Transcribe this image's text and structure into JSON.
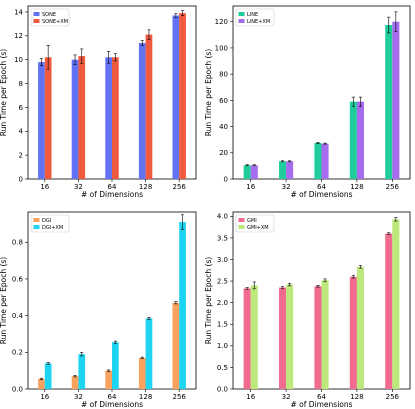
{
  "chart_data": [
    {
      "type": "bar",
      "categories": [
        "16",
        "32",
        "64",
        "128",
        "256"
      ],
      "xlabel": "# of Dimensions",
      "ylabel": "Run Time per Epoch (s)",
      "ylim": [
        0,
        14.5
      ],
      "yticks": [
        0,
        2,
        4,
        6,
        8,
        10,
        12,
        14
      ],
      "legend": "top-left",
      "series": [
        {
          "name": "SONE",
          "color": "#6272f5",
          "values": [
            9.8,
            10.0,
            10.2,
            11.4,
            13.7
          ],
          "errors": [
            0.3,
            0.4,
            0.5,
            0.2,
            0.15
          ]
        },
        {
          "name": "SONE+XM",
          "color": "#ef5a3f",
          "values": [
            10.2,
            10.3,
            10.2,
            12.1,
            13.9
          ],
          "errors": [
            1.0,
            0.6,
            0.3,
            0.4,
            0.2
          ]
        }
      ]
    },
    {
      "type": "bar",
      "categories": [
        "16",
        "32",
        "64",
        "128",
        "256"
      ],
      "xlabel": "# of Dimensions",
      "ylabel": "Run Time per Epoch (s)",
      "ylim": [
        0,
        132
      ],
      "yticks": [
        0,
        20,
        40,
        60,
        80,
        100,
        120
      ],
      "legend": "top-left",
      "series": [
        {
          "name": "LINE",
          "color": "#1fcc9b",
          "values": [
            10.5,
            13.5,
            27.5,
            59.0,
            117.5
          ],
          "errors": [
            0.4,
            0.4,
            0.5,
            3.5,
            6.0
          ]
        },
        {
          "name": "LINE+XM",
          "color": "#a66cf0",
          "values": [
            10.5,
            13.5,
            27.0,
            59.0,
            120.0
          ],
          "errors": [
            0.4,
            0.4,
            0.4,
            3.5,
            7.5
          ]
        }
      ]
    },
    {
      "type": "bar",
      "categories": [
        "16",
        "32",
        "64",
        "128",
        "256"
      ],
      "xlabel": "# of Dimensions",
      "ylabel": "Run Time per Epoch (s)",
      "ylim": [
        0,
        0.965
      ],
      "yticks": [
        0.0,
        0.2,
        0.4,
        0.6,
        0.8
      ],
      "legend": "top-left",
      "series": [
        {
          "name": "DGI",
          "color": "#f9a25e",
          "values": [
            0.055,
            0.07,
            0.1,
            0.17,
            0.47
          ],
          "errors": [
            0.004,
            0.004,
            0.004,
            0.004,
            0.006
          ]
        },
        {
          "name": "DGI+XM",
          "color": "#1ed4f0",
          "values": [
            0.14,
            0.19,
            0.255,
            0.385,
            0.91
          ],
          "errors": [
            0.005,
            0.01,
            0.006,
            0.006,
            0.04
          ]
        }
      ]
    },
    {
      "type": "bar",
      "categories": [
        "16",
        "32",
        "64",
        "128",
        "256"
      ],
      "xlabel": "# of Dimensions",
      "ylabel": "Run Time per Epoch (s)",
      "ylim": [
        0,
        4.1
      ],
      "yticks": [
        0.0,
        0.5,
        1.0,
        1.5,
        2.0,
        2.5,
        3.0,
        3.5,
        4.0
      ],
      "legend": "top-left",
      "series": [
        {
          "name": "GMI",
          "color": "#f06b8e",
          "values": [
            2.33,
            2.35,
            2.38,
            2.6,
            3.6
          ],
          "errors": [
            0.02,
            0.02,
            0.02,
            0.03,
            0.02
          ]
        },
        {
          "name": "GMI+XM",
          "color": "#bde87c",
          "values": [
            2.4,
            2.42,
            2.52,
            2.83,
            3.93
          ],
          "errors": [
            0.08,
            0.03,
            0.03,
            0.03,
            0.04
          ]
        }
      ]
    }
  ]
}
